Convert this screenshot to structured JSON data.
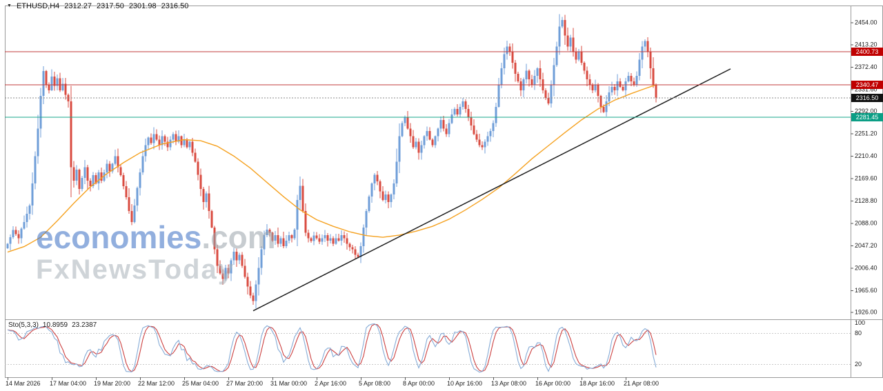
{
  "page": {
    "bg": "#ffffff"
  },
  "chart_header": {
    "collapse_icon": "▼",
    "symbol": "ETHUSD,H4",
    "open": "2312.27",
    "high": "2317.50",
    "low": "2301.98",
    "close": "2316.50"
  },
  "watermark": {
    "brand": "economies",
    "domain": ".com",
    "subtitle": "FxNewsToday",
    "brand_color": "#3a6fc4",
    "muted_color": "#9aa3ab"
  },
  "indicator_header": {
    "label": "Sto(5,3,3)",
    "k_value": "10.8959",
    "d_value": "23.2387"
  },
  "chart_data": {
    "type": "candlestick",
    "symbol": "ETHUSD",
    "timeframe": "H4",
    "colors": {
      "up": "#6f9ed8",
      "down": "#d94b40",
      "ma": "#f5a11f",
      "trend": "#1a1a1a",
      "frame": "#9a9a9a"
    },
    "y_axis": {
      "min": 1915,
      "max": 2482,
      "ticks": [
        2454.0,
        2413.2,
        2372.4,
        2331.6,
        2292.0,
        2251.2,
        2210.4,
        2169.6,
        2128.8,
        2088.0,
        2047.2,
        2006.4,
        1965.6,
        1926.0
      ]
    },
    "time_labels": [
      {
        "index": 0,
        "label": "14 Mar 2026"
      },
      {
        "index": 16,
        "label": "17 Mar 04:00"
      },
      {
        "index": 32,
        "label": "19 Mar 20:00"
      },
      {
        "index": 48,
        "label": "22 Mar 12:00"
      },
      {
        "index": 64,
        "label": "25 Mar 04:00"
      },
      {
        "index": 80,
        "label": "27 Mar 20:00"
      },
      {
        "index": 96,
        "label": "31 Mar 00:00"
      },
      {
        "index": 112,
        "label": "2 Apr 16:00"
      },
      {
        "index": 128,
        "label": "5 Apr 08:00"
      },
      {
        "index": 144,
        "label": "8 Apr 00:00"
      },
      {
        "index": 160,
        "label": "10 Apr 16:00"
      },
      {
        "index": 176,
        "label": "13 Apr 08:00"
      },
      {
        "index": 192,
        "label": "16 Apr 00:00"
      },
      {
        "index": 208,
        "label": "18 Apr 16:00"
      },
      {
        "index": 224,
        "label": "21 Apr 08:00"
      }
    ],
    "closes": [
      2050,
      2062,
      2075,
      2068,
      2060,
      2078,
      2090,
      2105,
      2120,
      2160,
      2210,
      2260,
      2320,
      2365,
      2340,
      2330,
      2355,
      2338,
      2352,
      2330,
      2342,
      2322,
      2310,
      2190,
      2165,
      2185,
      2150,
      2170,
      2190,
      2165,
      2155,
      2175,
      2160,
      2180,
      2165,
      2180,
      2196,
      2182,
      2196,
      2210,
      2190,
      2175,
      2155,
      2135,
      2110,
      2090,
      2120,
      2152,
      2180,
      2210,
      2230,
      2244,
      2234,
      2250,
      2240,
      2230,
      2246,
      2236,
      2226,
      2240,
      2250,
      2236,
      2246,
      2230,
      2240,
      2226,
      2236,
      2216,
      2200,
      2176,
      2150,
      2126,
      2142,
      2110,
      2080,
      2040,
      2010,
      1996,
      1986,
      2006,
      1996,
      2020,
      2036,
      2020,
      2030,
      2010,
      1990,
      1972,
      1956,
      1946,
      1976,
      2006,
      2040,
      2066,
      2076,
      2070,
      2056,
      2066,
      2050,
      2060,
      2046,
      2056,
      2066,
      2060,
      2076,
      2130,
      2156,
      2110,
      2070,
      2060,
      2055,
      2065,
      2060,
      2054,
      2060,
      2066,
      2056,
      2060,
      2050,
      2060,
      2056,
      2066,
      2060,
      2050,
      2044,
      2040,
      2030,
      2026,
      2046,
      2080,
      2110,
      2136,
      2160,
      2176,
      2164,
      2146,
      2130,
      2140,
      2126,
      2140,
      2160,
      2200,
      2246,
      2270,
      2280,
      2260,
      2246,
      2226,
      2236,
      2216,
      2230,
      2246,
      2256,
      2240,
      2230,
      2246,
      2260,
      2276,
      2260,
      2250,
      2270,
      2286,
      2296,
      2286,
      2300,
      2310,
      2296,
      2280,
      2266,
      2250,
      2240,
      2230,
      2226,
      2236,
      2246,
      2256,
      2270,
      2300,
      2340,
      2370,
      2396,
      2410,
      2400,
      2380,
      2360,
      2346,
      2330,
      2350,
      2366,
      2350,
      2340,
      2356,
      2370,
      2350,
      2330,
      2316,
      2306,
      2340,
      2376,
      2410,
      2446,
      2458,
      2430,
      2410,
      2426,
      2400,
      2386,
      2400,
      2380,
      2366,
      2350,
      2340,
      2330,
      2340,
      2320,
      2300,
      2290,
      2310,
      2326,
      2336,
      2330,
      2346,
      2336,
      2330,
      2346,
      2356,
      2346,
      2340,
      2356,
      2386,
      2410,
      2420,
      2400,
      2370,
      2340,
      2316.5
    ],
    "ma_line": {
      "color": "#f5a11f",
      "points": [
        [
          0,
          2035
        ],
        [
          6,
          2045
        ],
        [
          12,
          2062
        ],
        [
          18,
          2092
        ],
        [
          24,
          2124
        ],
        [
          30,
          2154
        ],
        [
          36,
          2178
        ],
        [
          42,
          2198
        ],
        [
          48,
          2216
        ],
        [
          56,
          2232
        ],
        [
          64,
          2240
        ],
        [
          70,
          2238
        ],
        [
          76,
          2228
        ],
        [
          82,
          2210
        ],
        [
          88,
          2188
        ],
        [
          94,
          2162
        ],
        [
          100,
          2136
        ],
        [
          106,
          2112
        ],
        [
          112,
          2094
        ],
        [
          118,
          2082
        ],
        [
          124,
          2072
        ],
        [
          130,
          2065
        ],
        [
          136,
          2062
        ],
        [
          142,
          2066
        ],
        [
          148,
          2073
        ],
        [
          154,
          2082
        ],
        [
          160,
          2095
        ],
        [
          166,
          2112
        ],
        [
          172,
          2131
        ],
        [
          178,
          2152
        ],
        [
          184,
          2178
        ],
        [
          190,
          2205
        ],
        [
          196,
          2229
        ],
        [
          202,
          2253
        ],
        [
          208,
          2276
        ],
        [
          214,
          2296
        ],
        [
          220,
          2312
        ],
        [
          226,
          2324
        ],
        [
          231,
          2333
        ],
        [
          235,
          2340
        ]
      ]
    },
    "trendline": {
      "from": {
        "index": 89,
        "price": 1928
      },
      "to": {
        "index": 262,
        "price": 2369
      },
      "color": "#1a1a1a"
    },
    "horizontal_levels": [
      {
        "price": 2400.73,
        "line": "#c23b3b",
        "badge": "#c00000",
        "style": "solid"
      },
      {
        "price": 2340.47,
        "line": "#c23b3b",
        "badge": "#c00000",
        "style": "solid"
      },
      {
        "price": 2316.5,
        "line": "#8a8a8a",
        "badge": "#111111",
        "style": "dotted"
      },
      {
        "price": 2281.45,
        "line": "#18a78b",
        "badge": "#0b9e85",
        "style": "solid"
      }
    ],
    "stochastic": {
      "name": "Sto(5,3,3)",
      "k": 10.8959,
      "d": 23.2387,
      "range": [
        0,
        100
      ],
      "levels": [
        80,
        20
      ],
      "axis_labels": [
        100,
        80,
        20
      ],
      "k_color": "#85abd6",
      "d_color": "#cc4040",
      "level_color": "#c9c9c9"
    }
  }
}
